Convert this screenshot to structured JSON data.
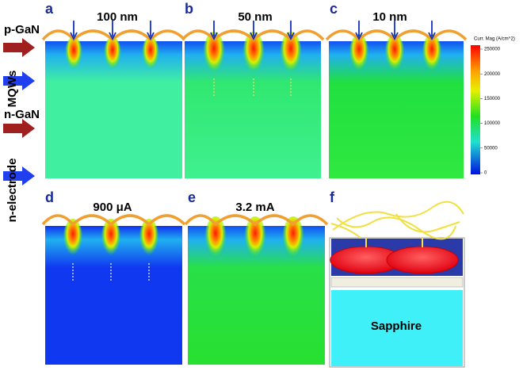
{
  "layers": [
    "p-GaN",
    "MQWs",
    "n-GaN",
    "n-electrode"
  ],
  "panels": [
    {
      "letter": "a",
      "label": "100 nm"
    },
    {
      "letter": "b",
      "label": "50 nm"
    },
    {
      "letter": "c",
      "label": "10 nm"
    },
    {
      "letter": "d",
      "label": "900 μA"
    },
    {
      "letter": "e",
      "label": "3.2 mA"
    },
    {
      "letter": "f",
      "label": "Sapphire"
    }
  ],
  "colorbar": {
    "title": "Curr. Mag (A/cm^2)",
    "range": [
      0,
      250000
    ],
    "ticks": [
      250000,
      200000,
      150000,
      100000,
      50000,
      0
    ]
  }
}
